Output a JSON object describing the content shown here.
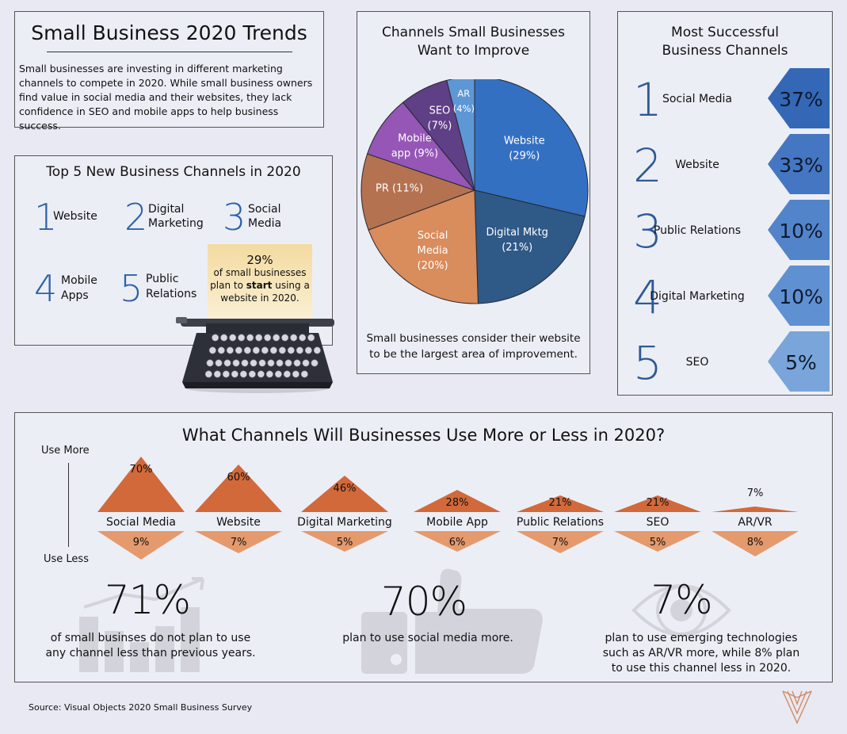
{
  "intro": {
    "title": "Small Business 2020 Trends",
    "text": "Small businesses are investing in different marketing channels to compete in 2020. While small business owners find value in social media and their websites, they lack confidence in SEO and mobile apps to help business success."
  },
  "top5": {
    "title": "Top 5 New Business Channels in 2020",
    "items": [
      {
        "num": "1",
        "label": "Website"
      },
      {
        "num": "2",
        "label": "Digital Marketing"
      },
      {
        "num": "3",
        "label": "Social Media"
      },
      {
        "num": "4",
        "label": "Mobile Apps"
      },
      {
        "num": "5",
        "label": "Public Relations"
      }
    ],
    "note_pct": "29%",
    "note_line1": "of small businesses",
    "note_line2a": "plan to ",
    "note_line2b": "start",
    "note_line2c": " using a",
    "note_line3": "website in 2020."
  },
  "pie": {
    "title_line1": "Channels Small Businesses",
    "title_line2": "Want to Improve",
    "caption_line1": "Small businesses consider their website",
    "caption_line2": "to be the largest area of improvement."
  },
  "chart_data": [
    {
      "type": "pie",
      "title": "Channels Small Businesses Want to Improve",
      "categories": [
        "Website",
        "Digital Mktg",
        "Social Media",
        "PR",
        "Mobile app",
        "SEO",
        "AR"
      ],
      "values": [
        29,
        21,
        20,
        11,
        9,
        7,
        4
      ],
      "labels": [
        "Website (29%)",
        "Digital Mktg (21%)",
        "Social Media (20%)",
        "PR (11%)",
        "Mobile app (9%)",
        "SEO (7%)",
        "AR (4%)"
      ],
      "colors": [
        "#3470c2",
        "#2f5987",
        "#d98c5c",
        "#b47251",
        "#9556b6",
        "#5f3f86",
        "#5e97d6"
      ]
    },
    {
      "type": "bar",
      "title": "Most Successful Business Channels",
      "categories": [
        "Social Media",
        "Website",
        "Public Relations",
        "Digital Marketing",
        "SEO"
      ],
      "values": [
        37,
        33,
        10,
        10,
        5
      ],
      "value_labels": [
        "37%",
        "33%",
        "10%",
        "10%",
        "5%"
      ],
      "ranks": [
        "1",
        "2",
        "3",
        "4",
        "5"
      ],
      "colors": [
        "#3468b6",
        "#4576c2",
        "#5284ca",
        "#5f90d1",
        "#79a5da"
      ]
    },
    {
      "type": "bar",
      "title": "What Channels Will Businesses Use More or Less in 2020?",
      "axis_top": "Use More",
      "axis_bottom": "Use Less",
      "categories": [
        "Social Media",
        "Website",
        "Digital Marketing",
        "Mobile App",
        "Public Relations",
        "SEO",
        "AR/VR"
      ],
      "series": [
        {
          "name": "Use More",
          "values": [
            70,
            60,
            46,
            28,
            21,
            21,
            7
          ],
          "labels": [
            "70%",
            "60%",
            "46%",
            "28%",
            "21%",
            "21%",
            "7%"
          ],
          "color": "#d2693a"
        },
        {
          "name": "Use Less",
          "values": [
            9,
            7,
            5,
            6,
            7,
            5,
            8
          ],
          "labels": [
            "9%",
            "7%",
            "5%",
            "6%",
            "7%",
            "5%",
            "8%"
          ],
          "color": "#e49a6c"
        }
      ]
    }
  ],
  "successful": {
    "title_line1": "Most Successful",
    "title_line2": "Business Channels"
  },
  "stats": [
    {
      "value": "71%",
      "line1": "of small businses do not plan to use",
      "line2": "any channel less than previous years.",
      "line3": ""
    },
    {
      "value": "70%",
      "line1": "plan to use social media more.",
      "line2": "",
      "line3": ""
    },
    {
      "value": "7%",
      "line1": "plan to use emerging technologies",
      "line2": "such as AR/VR more, while 8% plan",
      "line3": "to use this channel less in 2020."
    }
  ],
  "source": "Source: Visual Objects 2020 Small Business Survey",
  "icons": [
    "typewriter-icon",
    "bar-chart-growth-icon",
    "thumbs-up-icon",
    "eye-icon",
    "visual-objects-logo-icon"
  ]
}
